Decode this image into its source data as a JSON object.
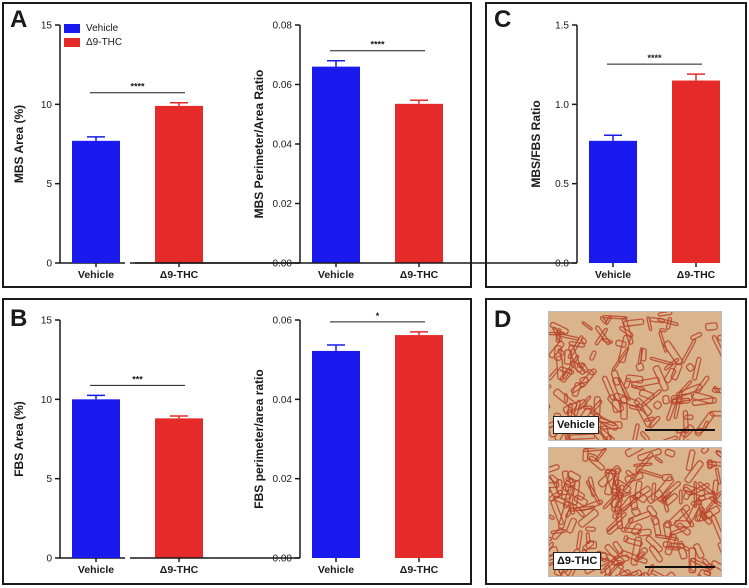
{
  "panels": {
    "A": {
      "letter": "A"
    },
    "B": {
      "letter": "B"
    },
    "C": {
      "letter": "C"
    },
    "D": {
      "letter": "D"
    }
  },
  "legend": {
    "items": [
      {
        "label": "Vehicle",
        "color": "#1a1aef"
      },
      {
        "label": "Δ9-THC",
        "color": "#e52a2a"
      }
    ]
  },
  "colors": {
    "vehicle": "#1a1aef",
    "thc": "#e52a2a",
    "axis": "#1a1a1a"
  },
  "micrographs": {
    "top_label": "Vehicle",
    "bottom_label": "Δ9-THC",
    "background": "#d9b48c",
    "vessel_color": "#b8442a"
  },
  "chart_data": [
    {
      "id": "mbs-area",
      "type": "bar",
      "categories": [
        "Vehicle",
        "Δ9-THC"
      ],
      "values": [
        7.7,
        9.9
      ],
      "errors": [
        0.25,
        0.2
      ],
      "ylabel": "MBS Area (%)",
      "ylim": [
        0,
        15
      ],
      "yticks": [
        0,
        5,
        10,
        15
      ],
      "tick_labels": [
        "0",
        "5",
        "10",
        "15"
      ],
      "significance": "****"
    },
    {
      "id": "mbs-perimeter",
      "type": "bar",
      "categories": [
        "Vehicle",
        "Δ9-THC"
      ],
      "values": [
        0.066,
        0.0535
      ],
      "errors": [
        0.002,
        0.0012
      ],
      "ylabel": "MBS Perimeter/Area Ratio",
      "ylim": [
        0,
        0.08
      ],
      "yticks": [
        0,
        0.02,
        0.04,
        0.06,
        0.08
      ],
      "tick_labels": [
        "0.00",
        "0.02",
        "0.04",
        "0.06",
        "0.08"
      ],
      "significance": "****"
    },
    {
      "id": "mbs-fbs-ratio",
      "type": "bar",
      "categories": [
        "Vehicle",
        "Δ9-THC"
      ],
      "values": [
        0.77,
        1.15
      ],
      "errors": [
        0.035,
        0.04
      ],
      "ylabel": "MBS/FBS Ratio",
      "ylim": [
        0,
        1.5
      ],
      "yticks": [
        0,
        0.5,
        1.0,
        1.5
      ],
      "tick_labels": [
        "0.0",
        "0.5",
        "1.0",
        "1.5"
      ],
      "significance": "****"
    },
    {
      "id": "fbs-area",
      "type": "bar",
      "categories": [
        "Vehicle",
        "Δ9-THC"
      ],
      "values": [
        10.0,
        8.8
      ],
      "errors": [
        0.25,
        0.15
      ],
      "ylabel": "FBS Area (%)",
      "ylim": [
        0,
        15
      ],
      "yticks": [
        0,
        5,
        10,
        15
      ],
      "tick_labels": [
        "0",
        "5",
        "10",
        "15"
      ],
      "significance": "***"
    },
    {
      "id": "fbs-perimeter",
      "type": "bar",
      "categories": [
        "Vehicle",
        "Δ9-THC"
      ],
      "values": [
        0.0522,
        0.0562
      ],
      "errors": [
        0.0015,
        0.0008
      ],
      "ylabel": "FBS perimeter/area ratio",
      "ylim": [
        0,
        0.06
      ],
      "yticks": [
        0,
        0.02,
        0.04,
        0.06
      ],
      "tick_labels": [
        "0.00",
        "0.02",
        "0.04",
        "0.06"
      ],
      "significance": "*"
    }
  ]
}
